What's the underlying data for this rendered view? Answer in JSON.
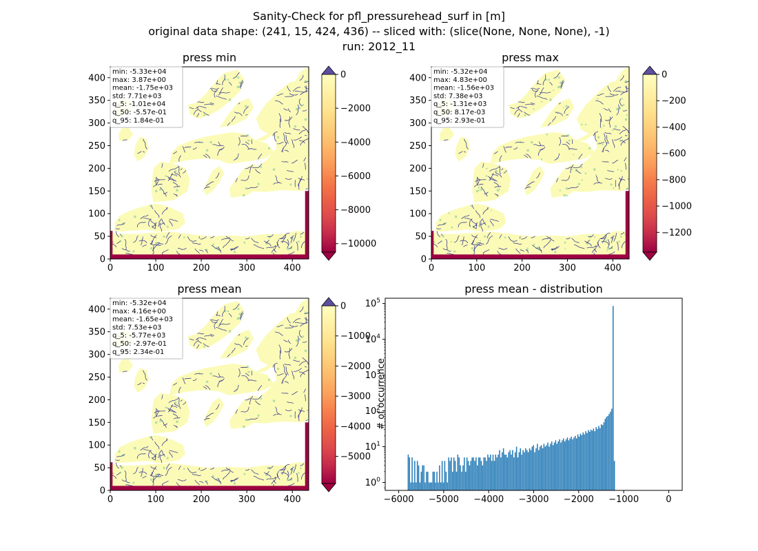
{
  "figure": {
    "title_lines": [
      "Sanity-Check for pfl_pressurehead_surf in [m]",
      "original data shape: (241, 15, 424, 436) -- sliced with: (slice(None, None, None), -1)",
      "run: 2012_11"
    ]
  },
  "colors": {
    "land": "#fbfbb7",
    "river": "#3e3e92",
    "boundary": "#9e0142",
    "hist_bar": "#1f77b4",
    "over": "#5e4fa2",
    "under": "#9e0142"
  },
  "chart_data": [
    {
      "type": "heatmap",
      "title": "press min",
      "x_ticks": [
        0,
        100,
        200,
        300,
        400
      ],
      "y_ticks": [
        0,
        50,
        100,
        150,
        200,
        250,
        300,
        350,
        400
      ],
      "xlim": [
        0,
        436
      ],
      "ylim": [
        0,
        424
      ],
      "stats": [
        "min: -5.33e+04",
        "max: 3.87e+00",
        "mean: -1.75e+03",
        "std: 7.71e+03",
        "q_5: -1.01e+04",
        "q_50: -5.57e-01",
        "q_95: 1.84e-01"
      ],
      "colorbar": {
        "vmin": -10500,
        "vmax": 0,
        "ticks": [
          0,
          -2000,
          -4000,
          -6000,
          -8000,
          -10000
        ]
      }
    },
    {
      "type": "heatmap",
      "title": "press max",
      "x_ticks": [
        0,
        100,
        200,
        300,
        400
      ],
      "y_ticks": [
        0,
        50,
        100,
        150,
        200,
        250,
        300,
        350,
        400
      ],
      "xlim": [
        0,
        436
      ],
      "ylim": [
        0,
        424
      ],
      "stats": [
        "min: -5.32e+04",
        "max: 4.83e+00",
        "mean: -1.56e+03",
        "std: 7.38e+03",
        "q_5: -1.31e+03",
        "q_50: 8.17e-03",
        "q_95: 2.93e-01"
      ],
      "colorbar": {
        "vmin": -1350,
        "vmax": 0,
        "ticks": [
          0,
          -200,
          -400,
          -600,
          -800,
          -1000,
          -1200
        ]
      }
    },
    {
      "type": "heatmap",
      "title": "press mean",
      "x_ticks": [
        0,
        100,
        200,
        300,
        400
      ],
      "y_ticks": [
        0,
        50,
        100,
        150,
        200,
        250,
        300,
        350,
        400
      ],
      "xlim": [
        0,
        436
      ],
      "ylim": [
        0,
        424
      ],
      "stats": [
        "min: -5.32e+04",
        "max: 4.16e+00",
        "mean: -1.65e+03",
        "std: 7.53e+03",
        "q_5: -5.77e+03",
        "q_50: -2.97e-01",
        "q_95: 2.34e-01"
      ],
      "colorbar": {
        "vmin": -5900,
        "vmax": 0,
        "ticks": [
          0,
          -1000,
          -2000,
          -3000,
          -4000,
          -5000
        ]
      }
    },
    {
      "type": "bar",
      "title": "press mean - distribution",
      "ylabel": "# of occurrence",
      "yscale": "log",
      "xlim": [
        -6300,
        300
      ],
      "x_ticks": [
        -6000,
        -5000,
        -4000,
        -3000,
        -2000,
        -1000,
        0
      ],
      "y_ticks": [
        1,
        10,
        100,
        1000,
        10000,
        100000
      ],
      "y_tick_labels": [
        "10^0",
        "10^1",
        "10^2",
        "10^3",
        "10^4",
        "10^5"
      ],
      "bin_start": -5800,
      "bin_width": 29,
      "counts": [
        6,
        5,
        1,
        5,
        1,
        4,
        1,
        4,
        3,
        1,
        2,
        3,
        3,
        1,
        2,
        2,
        1,
        1,
        1,
        2,
        2,
        1,
        2,
        1,
        3,
        1,
        4,
        1,
        4,
        2,
        1,
        5,
        4,
        5,
        2,
        5,
        4,
        2,
        6,
        5,
        3,
        2,
        3,
        5,
        2,
        5,
        4,
        3,
        4,
        5,
        5,
        4,
        5,
        3,
        5,
        5,
        4,
        3,
        5,
        5,
        4,
        6,
        5,
        6,
        4,
        6,
        4,
        6,
        5,
        6,
        8,
        5,
        7,
        9,
        6,
        6,
        5,
        7,
        8,
        6,
        8,
        5,
        7,
        10,
        5,
        7,
        9,
        6,
        8,
        7,
        9,
        8,
        7,
        9,
        8,
        10,
        11,
        7,
        9,
        12,
        8,
        10,
        11,
        9,
        12,
        10,
        11,
        13,
        10,
        12,
        14,
        11,
        13,
        15,
        12,
        14,
        16,
        13,
        15,
        17,
        14,
        16,
        18,
        15,
        17,
        19,
        16,
        18,
        20,
        17,
        22,
        19,
        23,
        21,
        25,
        22,
        27,
        24,
        29,
        26,
        30,
        28,
        32,
        27,
        35,
        31,
        38,
        33,
        42,
        40,
        48,
        60,
        68,
        72,
        82,
        95,
        115,
        85000,
        4
      ]
    }
  ]
}
